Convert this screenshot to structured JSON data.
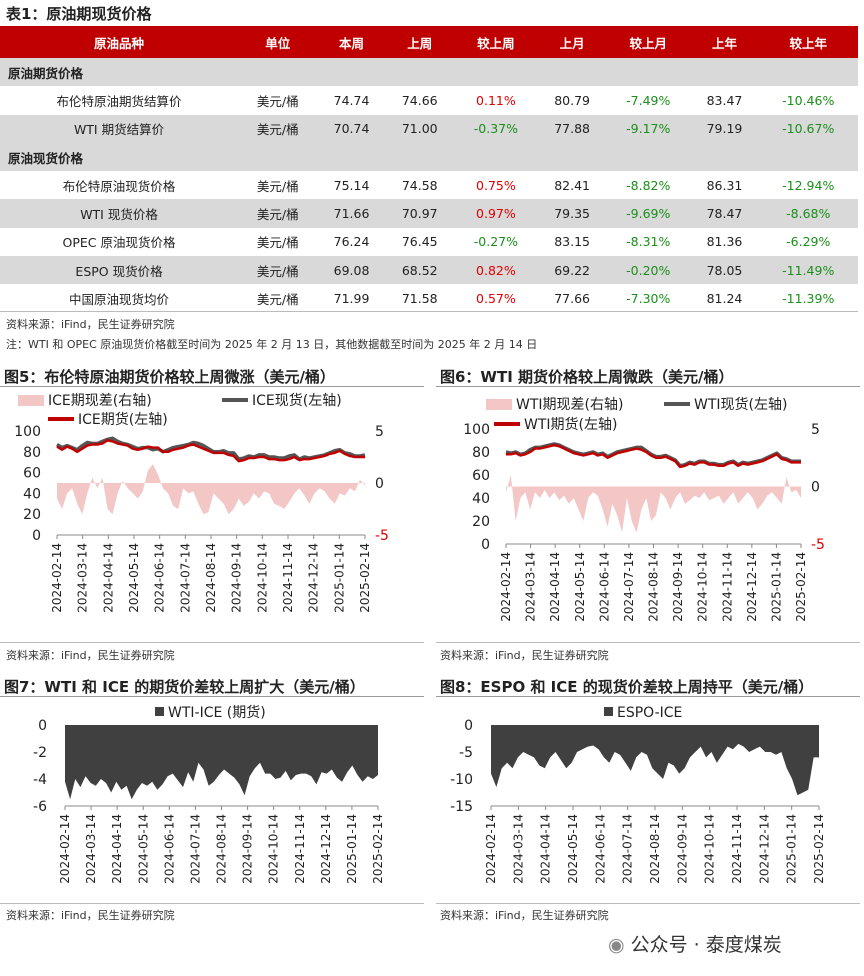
{
  "table": {
    "title": "表1：原油期现货价格",
    "headers": [
      "原油品种",
      "单位",
      "本周",
      "上周",
      "较上周",
      "上月",
      "较上月",
      "上年",
      "较上年"
    ],
    "sections": [
      {
        "label": "原油期货价格",
        "rows": [
          {
            "name": "布伦特原油期货结算价",
            "unit": "美元/桶",
            "this_week": "74.74",
            "last_week": "74.66",
            "wow": "0.11%",
            "last_month": "80.79",
            "mom": "-7.49%",
            "last_year": "83.47",
            "yoy": "-10.46%"
          },
          {
            "name": "WTI 期货结算价",
            "unit": "美元/桶",
            "this_week": "70.74",
            "last_week": "71.00",
            "wow": "-0.37%",
            "last_month": "77.88",
            "mom": "-9.17%",
            "last_year": "79.19",
            "yoy": "-10.67%"
          }
        ]
      },
      {
        "label": "原油现货价格",
        "rows": [
          {
            "name": "布伦特原油现货价格",
            "unit": "美元/桶",
            "this_week": "75.14",
            "last_week": "74.58",
            "wow": "0.75%",
            "last_month": "82.41",
            "mom": "-8.82%",
            "last_year": "86.31",
            "yoy": "-12.94%"
          },
          {
            "name": "WTI 现货价格",
            "unit": "美元/桶",
            "this_week": "71.66",
            "last_week": "70.97",
            "wow": "0.97%",
            "last_month": "79.35",
            "mom": "-9.69%",
            "last_year": "78.47",
            "yoy": "-8.68%"
          },
          {
            "name": "OPEC 原油现货价格",
            "unit": "美元/桶",
            "this_week": "76.24",
            "last_week": "76.45",
            "wow": "-0.27%",
            "last_month": "83.15",
            "mom": "-8.31%",
            "last_year": "81.36",
            "yoy": "-6.29%"
          },
          {
            "name": "ESPO 现货价格",
            "unit": "美元/桶",
            "this_week": "69.08",
            "last_week": "68.52",
            "wow": "0.82%",
            "last_month": "69.22",
            "mom": "-0.20%",
            "last_year": "78.05",
            "yoy": "-11.49%"
          },
          {
            "name": "中国原油现货均价",
            "unit": "美元/桶",
            "this_week": "71.99",
            "last_week": "71.58",
            "wow": "0.57%",
            "last_month": "77.66",
            "mom": "-7.30%",
            "last_year": "81.24",
            "yoy": "-11.39%"
          }
        ]
      }
    ],
    "source": "资料来源：iFind，民生证券研究院",
    "note": "注：WTI 和 OPEC 原油现货价格截至时间为 2025 年 2 月 13 日，其他数据截至时间为 2025 年 2 月 14 日"
  },
  "colors": {
    "header_bg": "#c00000",
    "up": "#e00000",
    "down": "#1a8f1a",
    "futures_line": "#c00000",
    "spot_line": "#555555",
    "spread_area": "#f4c7c7",
    "diff_area": "#404040"
  },
  "figures": {
    "fig5_title": "图5：布伦特原油期货价格较上周微涨（美元/桶）",
    "fig6_title": "图6：WTI 期货价格较上周微跌（美元/桶）",
    "fig7_title": "图7：WTI 和 ICE 的期货价差较上周扩大（美元/桶）",
    "fig8_title": "图8：ESPO 和 ICE 的现货价差较上周持平（美元/桶）",
    "source5": "资料来源：iFind，民生证券研究院",
    "source6": "资料来源：iFind，民生证券研究院",
    "source7": "资料来源：iFind，民生证券研究院",
    "source8": "资料来源：iFind，民生证券研究院"
  },
  "watermark": "公众号 · 泰度煤炭",
  "chart_data": [
    {
      "id": "fig5",
      "type": "line",
      "x_ticks": [
        "2024-02-14",
        "2024-03-14",
        "2024-04-14",
        "2024-05-14",
        "2024-06-14",
        "2024-07-14",
        "2024-08-14",
        "2024-09-14",
        "2024-10-14",
        "2024-11-14",
        "2024-12-14",
        "2025-01-14",
        "2025-02-14"
      ],
      "legend": [
        "ICE期现差(右轴)",
        "ICE现货(左轴)",
        "ICE期货(左轴)"
      ],
      "ylim_left": [
        0,
        100
      ],
      "yticks_left": [
        "100",
        "80",
        "60",
        "40",
        "20",
        "0"
      ],
      "ylim_right": [
        -5,
        5
      ],
      "yticks_right": [
        "5",
        "0",
        "-5"
      ],
      "series": [
        {
          "name": "ICE期现差(右轴)",
          "axis": "right",
          "type": "area",
          "values": [
            -1.5,
            -2.5,
            -1,
            -0.5,
            -2,
            -3,
            -1,
            0.5,
            -0.5,
            0.5,
            -2.5,
            -3,
            -1,
            0.2,
            -0.5,
            -1,
            -1.5,
            -0.8,
            1.2,
            1.8,
            0.8,
            -0.5,
            -1,
            -2.2,
            -2.5,
            -0.5,
            -1,
            -0.8,
            -2,
            -3,
            -2.8,
            -1,
            -1.5,
            -2,
            -3,
            -2.5,
            -1.5,
            -2.2,
            -1.8,
            -1,
            -1.5,
            -0.8,
            -1,
            -2,
            -2.2,
            -2.5,
            -1.8,
            -1,
            -0.5,
            -1.2,
            -2,
            -1,
            -0.5,
            -0.8,
            -1.5,
            -2,
            -1,
            -1.2,
            -0.5,
            -0.8,
            0.3,
            -0.2
          ]
        },
        {
          "name": "ICE现货(左轴)",
          "axis": "left",
          "type": "line",
          "values": [
            87,
            84,
            86,
            84,
            82,
            86,
            89,
            88,
            88,
            90,
            92,
            93,
            90,
            88,
            87,
            85,
            83,
            84,
            84,
            82,
            83,
            80,
            82,
            84,
            85,
            86,
            87,
            89,
            88,
            86,
            83,
            80,
            80,
            81,
            79,
            79,
            73,
            74,
            76,
            75,
            77,
            77,
            75,
            75,
            74,
            74,
            76,
            77,
            73,
            75,
            74,
            75,
            76,
            77,
            79,
            81,
            82,
            79,
            78,
            76,
            76,
            77
          ]
        },
        {
          "name": "ICE期货(左轴)",
          "axis": "left",
          "type": "line",
          "values": [
            85,
            82,
            85,
            83,
            80,
            83,
            86,
            87,
            87,
            88,
            91,
            90,
            88,
            87,
            86,
            83,
            82,
            83,
            85,
            84,
            84,
            80,
            80,
            82,
            83,
            84,
            86,
            87,
            85,
            83,
            81,
            79,
            79,
            79,
            77,
            76,
            71,
            72,
            74,
            74,
            75,
            75,
            73,
            73,
            72,
            72,
            73,
            75,
            72,
            73,
            73,
            74,
            75,
            76,
            78,
            79,
            81,
            78,
            76,
            75,
            75,
            75
          ]
        }
      ]
    },
    {
      "id": "fig6",
      "type": "line",
      "x_ticks": [
        "2024-02-14",
        "2024-03-14",
        "2024-04-14",
        "2024-05-14",
        "2024-06-14",
        "2024-07-14",
        "2024-08-14",
        "2024-09-14",
        "2024-10-14",
        "2024-11-14",
        "2024-12-14",
        "2025-01-14",
        "2025-02-14"
      ],
      "legend": [
        "WTI期现差(右轴)",
        "WTI现货(左轴)",
        "WTI期货(左轴)"
      ],
      "ylim_left": [
        0,
        100
      ],
      "yticks_left": [
        "100",
        "80",
        "60",
        "40",
        "20",
        "0"
      ],
      "ylim_right": [
        -5,
        5
      ],
      "yticks_right": [
        "5",
        "0",
        "-5"
      ],
      "series": [
        {
          "name": "WTI期现差(右轴)",
          "axis": "right",
          "type": "area",
          "values": [
            -0.5,
            1,
            -3,
            -1,
            -0.5,
            -2,
            -0.5,
            -1,
            -0.3,
            -1,
            -0.5,
            -1.2,
            -0.8,
            -1.5,
            -1,
            -2,
            -3,
            -1,
            -0.5,
            -0.8,
            -2,
            -3.5,
            -1.5,
            -2.5,
            -4,
            -1,
            -3,
            -4,
            -2,
            -1,
            -3,
            -2.5,
            -0.5,
            -1,
            -2,
            -1,
            -0.5,
            -1.5,
            -1.2,
            -0.8,
            -1,
            -0.5,
            -1.2,
            -1,
            -0.8,
            -1.5,
            -1,
            -0.5,
            -1.5,
            -1,
            -0.5,
            -1,
            -2,
            -1.5,
            -0.8,
            -0.5,
            -1,
            -1.5,
            0.8,
            -0.5,
            -0.3,
            -1
          ]
        },
        {
          "name": "WTI现货(左轴)",
          "axis": "left",
          "type": "line",
          "values": [
            80,
            79,
            80,
            78,
            79,
            82,
            84,
            84,
            85,
            86,
            87,
            86,
            84,
            82,
            80,
            79,
            78,
            79,
            80,
            78,
            79,
            76,
            78,
            80,
            81,
            82,
            83,
            84,
            84,
            81,
            78,
            76,
            76,
            77,
            75,
            73,
            68,
            69,
            71,
            70,
            72,
            72,
            70,
            70,
            69,
            69,
            71,
            72,
            69,
            71,
            70,
            71,
            72,
            73,
            75,
            77,
            79,
            75,
            74,
            72,
            72,
            72
          ]
        },
        {
          "name": "WTI期货(左轴)",
          "axis": "left",
          "type": "line",
          "values": [
            78,
            78,
            79,
            77,
            78,
            80,
            83,
            83,
            84,
            85,
            86,
            85,
            83,
            81,
            79,
            78,
            77,
            78,
            79,
            77,
            78,
            75,
            77,
            79,
            80,
            81,
            82,
            83,
            82,
            80,
            77,
            75,
            75,
            76,
            74,
            72,
            67,
            68,
            70,
            69,
            71,
            71,
            69,
            69,
            68,
            68,
            70,
            71,
            68,
            70,
            69,
            70,
            71,
            72,
            74,
            76,
            78,
            74,
            73,
            71,
            71,
            71
          ]
        }
      ]
    },
    {
      "id": "fig7",
      "type": "area",
      "x_ticks": [
        "2024-02-14",
        "2024-03-14",
        "2024-04-14",
        "2024-05-14",
        "2024-06-14",
        "2024-07-14",
        "2024-08-14",
        "2024-09-14",
        "2024-10-14",
        "2024-11-14",
        "2024-12-14",
        "2025-01-14",
        "2025-02-14"
      ],
      "legend": [
        "WTI-ICE (期货)"
      ],
      "ylim": [
        -6,
        0
      ],
      "yticks": [
        "0",
        "-2",
        "-4",
        "-6"
      ],
      "series": [
        {
          "name": "WTI-ICE (期货)",
          "values": [
            -4.2,
            -5.5,
            -4,
            -4.6,
            -3.8,
            -4.3,
            -4.5,
            -4,
            -4.3,
            -5,
            -4.2,
            -4.8,
            -4.5,
            -5.5,
            -4.8,
            -4.3,
            -4.5,
            -4.2,
            -4.8,
            -4.4,
            -3.8,
            -3.6,
            -4.1,
            -4.6,
            -3.5,
            -4.2,
            -2.8,
            -3.3,
            -4.5,
            -4.2,
            -3.7,
            -3.3,
            -3.6,
            -3.9,
            -4.4,
            -5.2,
            -3.8,
            -3.2,
            -2.8,
            -3.6,
            -3.6,
            -4,
            -3.9,
            -3.4,
            -4.1,
            -3.7,
            -3.6,
            -3.6,
            -3.8,
            -4.4,
            -3.5,
            -3.6,
            -3.3,
            -3.9,
            -4.2,
            -3.5,
            -3,
            -3.7,
            -4.2,
            -3.8,
            -4,
            -3.7
          ]
        }
      ]
    },
    {
      "id": "fig8",
      "type": "area",
      "x_ticks": [
        "2024-02-14",
        "2024-03-14",
        "2024-04-14",
        "2024-05-14",
        "2024-06-14",
        "2024-07-14",
        "2024-08-14",
        "2024-09-14",
        "2024-10-14",
        "2024-11-14",
        "2024-12-14",
        "2025-01-14",
        "2025-02-14"
      ],
      "legend": [
        "ESPO-ICE"
      ],
      "ylim": [
        -15,
        0
      ],
      "yticks": [
        "0",
        "-5",
        "-10",
        "-15"
      ],
      "series": [
        {
          "name": "ESPO-ICE",
          "values": [
            -9,
            -11.5,
            -8,
            -7,
            -8,
            -6,
            -5,
            -5.5,
            -6,
            -7.5,
            -8,
            -6,
            -5,
            -6.5,
            -8,
            -7,
            -5,
            -4.5,
            -4,
            -3.8,
            -4.5,
            -6,
            -7,
            -5,
            -5.5,
            -7,
            -8.5,
            -6,
            -5,
            -5.5,
            -8,
            -9,
            -10,
            -7,
            -7.5,
            -9,
            -8,
            -6,
            -5,
            -4,
            -6,
            -5,
            -7,
            -5.5,
            -4,
            -4.5,
            -3.5,
            -4,
            -5,
            -4.5,
            -4,
            -5,
            -5,
            -5.5,
            -5,
            -8,
            -10,
            -13,
            -12.5,
            -12,
            -6,
            -6
          ]
        }
      ]
    }
  ]
}
